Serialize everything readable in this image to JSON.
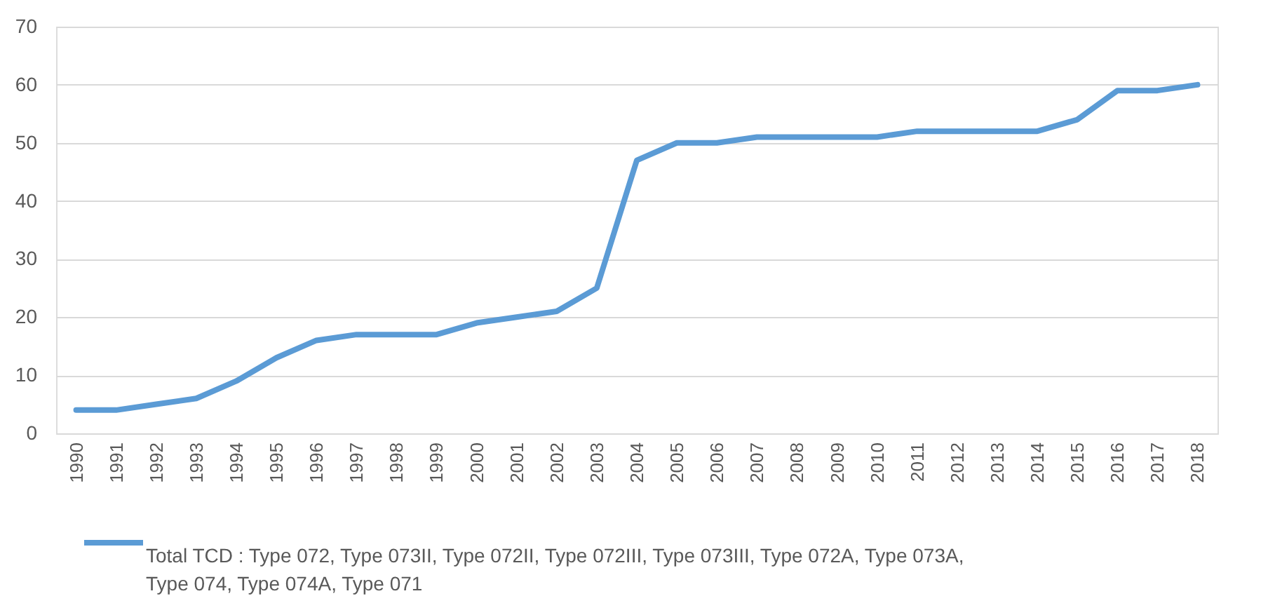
{
  "chart_data": {
    "type": "line",
    "categories": [
      "1990",
      "1991",
      "1992",
      "1993",
      "1994",
      "1995",
      "1996",
      "1997",
      "1998",
      "1999",
      "2000",
      "2001",
      "2002",
      "2003",
      "2004",
      "2005",
      "2006",
      "2007",
      "2008",
      "2009",
      "2010",
      "2011",
      "2012",
      "2013",
      "2014",
      "2015",
      "2016",
      "2017",
      "2018"
    ],
    "series": [
      {
        "name": "Total TCD : Type 072, Type 073II, Type 072II, Type 072III, Type 073III, Type 072A, Type 073A, Type 074, Type 074A, Type 071",
        "color": "#5b9bd5",
        "values": [
          4,
          4,
          5,
          6,
          9,
          13,
          16,
          17,
          17,
          17,
          19,
          20,
          21,
          25,
          47,
          50,
          50,
          51,
          51,
          51,
          51,
          52,
          52,
          52,
          52,
          54,
          59,
          59,
          60
        ]
      }
    ],
    "ylim": [
      0,
      70
    ],
    "yticks": [
      0,
      10,
      20,
      30,
      40,
      50,
      60,
      70
    ],
    "grid": "y",
    "legend": "bottom",
    "marker": "none",
    "line_style": "solid"
  }
}
